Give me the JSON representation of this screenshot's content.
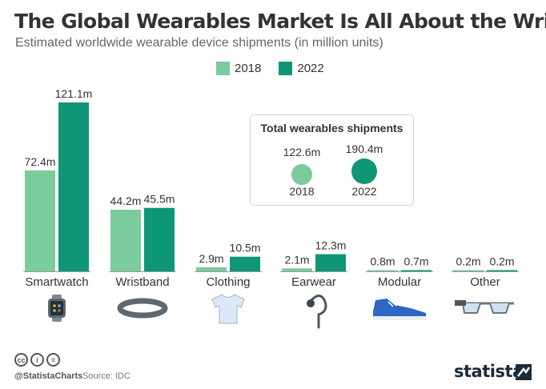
{
  "title": "The Global Wearables Market Is All About the Wrist",
  "subtitle": "Estimated worldwide wearable device shipments (in million units)",
  "legend": [
    "2018",
    "2022"
  ],
  "colors": {
    "y2018": "#7bcb9c",
    "y2022": "#0f9676",
    "text": "#333333"
  },
  "chart_data": {
    "type": "bar",
    "categories": [
      "Smartwatch",
      "Wristband",
      "Clothing",
      "Earwear",
      "Modular",
      "Other"
    ],
    "series": [
      {
        "name": "2018",
        "values": [
          72.4,
          44.2,
          2.9,
          2.1,
          0.8,
          0.2
        ],
        "labels": [
          "72.4m",
          "44.2m",
          "2.9m",
          "2.1m",
          "0.8m",
          "0.2m"
        ]
      },
      {
        "name": "2022",
        "values": [
          121.1,
          45.5,
          10.5,
          12.3,
          0.7,
          0.2
        ],
        "labels": [
          "121.1m",
          "45.5m",
          "10.5m",
          "12.3m",
          "0.7m",
          "0.2m"
        ]
      }
    ],
    "ylim": [
      0,
      121.1
    ]
  },
  "icons": [
    "smartwatch-icon",
    "wristband-icon",
    "tshirt-icon",
    "earpiece-icon",
    "modular-sneaker-icon",
    "smart-glasses-icon"
  ],
  "totals": {
    "title": "Total wearables shipments",
    "items": [
      {
        "year": "2018",
        "value": 122.6,
        "label": "122.6m"
      },
      {
        "year": "2022",
        "value": 190.4,
        "label": "190.4m"
      }
    ]
  },
  "footer": {
    "handle": "@StatistaCharts",
    "source": "Source: IDC",
    "brand": "statista"
  }
}
